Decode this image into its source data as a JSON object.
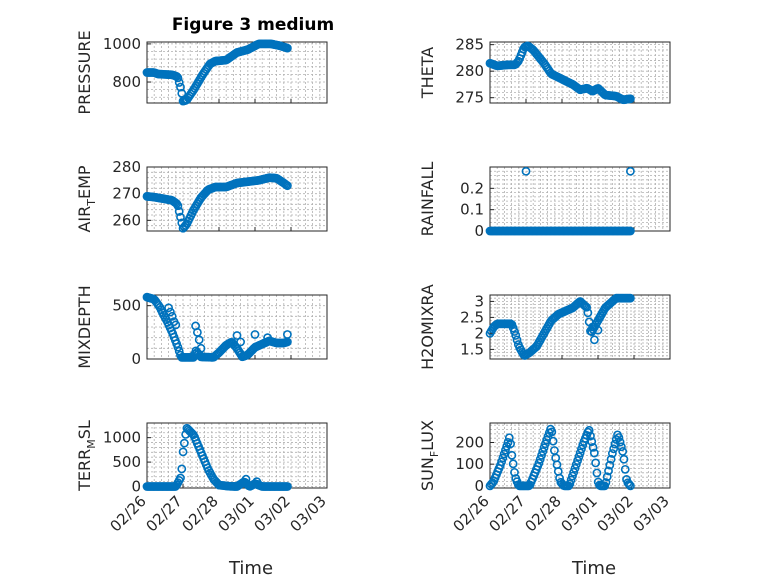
{
  "title": "Figure 3 medium",
  "colors": {
    "marker": "#0072BD",
    "axis": "#262626",
    "grid": "#b0b0b0"
  },
  "chart_data": [
    {
      "type": "scatter",
      "ylabel": "PRESSURE",
      "ylabel_main": "PRESSURE",
      "ylabel_sub": "",
      "ylabel_tail": "",
      "ylim": [
        690,
        1010
      ],
      "yticks": [
        800,
        1000
      ],
      "anchors": [
        [
          0,
          850
        ],
        [
          0.2,
          850
        ],
        [
          0.3,
          842
        ],
        [
          0.7,
          838
        ],
        [
          0.85,
          828
        ],
        [
          0.95,
          760
        ],
        [
          1.0,
          700
        ],
        [
          1.1,
          705
        ],
        [
          1.3,
          760
        ],
        [
          1.55,
          840
        ],
        [
          1.75,
          895
        ],
        [
          1.9,
          910
        ],
        [
          2.2,
          915
        ],
        [
          2.5,
          955
        ],
        [
          2.8,
          970
        ],
        [
          3.1,
          1000
        ],
        [
          3.45,
          1000
        ],
        [
          3.7,
          990
        ],
        [
          3.9,
          978
        ]
      ]
    },
    {
      "type": "scatter",
      "ylabel": "THETA",
      "ylabel_main": "THETA",
      "ylabel_sub": "",
      "ylabel_tail": "",
      "ylim": [
        274,
        285.5
      ],
      "yticks": [
        275,
        280,
        285
      ],
      "anchors": [
        [
          0,
          281.5
        ],
        [
          0.2,
          281
        ],
        [
          0.5,
          281.2
        ],
        [
          0.7,
          281.2
        ],
        [
          0.8,
          282
        ],
        [
          0.95,
          284.5
        ],
        [
          1.05,
          284.8
        ],
        [
          1.2,
          284
        ],
        [
          1.5,
          281.5
        ],
        [
          1.7,
          279.5
        ],
        [
          2.0,
          278.5
        ],
        [
          2.3,
          277.5
        ],
        [
          2.5,
          276.5
        ],
        [
          2.7,
          276.8
        ],
        [
          2.85,
          276.2
        ],
        [
          3.0,
          276.8
        ],
        [
          3.2,
          275.5
        ],
        [
          3.5,
          275.3
        ],
        [
          3.7,
          274.6
        ],
        [
          3.9,
          274.8
        ]
      ]
    },
    {
      "type": "scatter",
      "ylabel": "AIR_TEMP",
      "ylabel_main": "AIR",
      "ylabel_sub": "T",
      "ylabel_tail": "EMP",
      "ylim": [
        256,
        280
      ],
      "yticks": [
        260,
        270,
        280
      ],
      "anchors": [
        [
          0,
          269
        ],
        [
          0.2,
          268.7
        ],
        [
          0.5,
          268
        ],
        [
          0.7,
          267.5
        ],
        [
          0.85,
          266
        ],
        [
          0.95,
          260
        ],
        [
          1.0,
          257
        ],
        [
          1.1,
          258.5
        ],
        [
          1.3,
          264
        ],
        [
          1.5,
          268.5
        ],
        [
          1.7,
          271.5
        ],
        [
          1.9,
          272.5
        ],
        [
          2.2,
          272.5
        ],
        [
          2.5,
          274
        ],
        [
          2.8,
          274.5
        ],
        [
          3.1,
          275
        ],
        [
          3.4,
          276
        ],
        [
          3.6,
          275.8
        ],
        [
          3.8,
          274
        ],
        [
          3.9,
          273
        ]
      ]
    },
    {
      "type": "scatter",
      "ylabel": "RAINFALL",
      "ylabel_main": "RAINFALL",
      "ylabel_sub": "",
      "ylabel_tail": "",
      "ylim": [
        0,
        0.3
      ],
      "yticks": [
        0,
        0.1,
        0.2
      ],
      "anchors": [
        [
          0,
          0
        ],
        [
          3.9,
          0
        ]
      ],
      "extra": [
        [
          1.0,
          0.28
        ],
        [
          3.9,
          0.28
        ]
      ]
    },
    {
      "type": "scatter",
      "ylabel": "MIXDEPTH",
      "ylabel_main": "MIXDEPTH",
      "ylabel_sub": "",
      "ylabel_tail": "",
      "ylim": [
        0,
        600
      ],
      "yticks": [
        0,
        500
      ],
      "anchors": [
        [
          0,
          580
        ],
        [
          0.2,
          560
        ],
        [
          0.35,
          490
        ],
        [
          0.45,
          420
        ],
        [
          0.55,
          360
        ],
        [
          0.7,
          250
        ],
        [
          0.85,
          120
        ],
        [
          0.95,
          15
        ],
        [
          1.3,
          15
        ],
        [
          1.35,
          80
        ],
        [
          1.5,
          20
        ],
        [
          1.85,
          15
        ],
        [
          2.0,
          60
        ],
        [
          2.2,
          130
        ],
        [
          2.35,
          160
        ],
        [
          2.5,
          100
        ],
        [
          2.65,
          20
        ],
        [
          2.8,
          40
        ],
        [
          3.0,
          110
        ],
        [
          3.2,
          140
        ],
        [
          3.4,
          170
        ],
        [
          3.6,
          150
        ],
        [
          3.8,
          150
        ],
        [
          3.9,
          160
        ]
      ],
      "extra": [
        [
          0.6,
          480
        ],
        [
          0.65,
          440
        ],
        [
          0.7,
          400
        ],
        [
          0.75,
          350
        ],
        [
          0.8,
          320
        ],
        [
          1.35,
          310
        ],
        [
          1.4,
          250
        ],
        [
          1.45,
          180
        ],
        [
          1.5,
          100
        ],
        [
          2.5,
          220
        ],
        [
          2.6,
          160
        ],
        [
          3.0,
          230
        ],
        [
          3.35,
          200
        ],
        [
          3.9,
          230
        ]
      ]
    },
    {
      "type": "scatter",
      "ylabel": "H2OMIXRA",
      "ylabel_main": "H2OMIXRA",
      "ylabel_sub": "",
      "ylabel_tail": "",
      "ylim": [
        1.2,
        3.2
      ],
      "yticks": [
        1.5,
        2,
        2.5,
        3
      ],
      "anchors": [
        [
          0,
          2.0
        ],
        [
          0.1,
          2.2
        ],
        [
          0.2,
          2.3
        ],
        [
          0.6,
          2.3
        ],
        [
          0.7,
          2.0
        ],
        [
          0.8,
          1.6
        ],
        [
          0.95,
          1.3
        ],
        [
          1.1,
          1.4
        ],
        [
          1.3,
          1.6
        ],
        [
          1.5,
          2.0
        ],
        [
          1.7,
          2.4
        ],
        [
          1.9,
          2.6
        ],
        [
          2.1,
          2.7
        ],
        [
          2.3,
          2.8
        ],
        [
          2.5,
          3.0
        ],
        [
          2.7,
          2.8
        ],
        [
          2.8,
          2.0
        ],
        [
          3.0,
          2.4
        ],
        [
          3.2,
          2.8
        ],
        [
          3.3,
          2.9
        ],
        [
          3.5,
          3.1
        ],
        [
          3.9,
          3.1
        ]
      ],
      "extra": [
        [
          2.9,
          1.8
        ],
        [
          3.0,
          2.1
        ],
        [
          2.85,
          2.2
        ],
        [
          3.05,
          2.5
        ]
      ]
    },
    {
      "type": "scatter",
      "ylabel": "TERR_MSL",
      "ylabel_main": "TERR",
      "ylabel_sub": "M",
      "ylabel_tail": "SL",
      "ylim": [
        -30,
        1300
      ],
      "yticks": [
        0,
        500,
        1000
      ],
      "anchors": [
        [
          0,
          0
        ],
        [
          0.8,
          0
        ],
        [
          0.95,
          200
        ],
        [
          1.0,
          700
        ],
        [
          1.1,
          1200
        ],
        [
          1.3,
          1050
        ],
        [
          1.5,
          700
        ],
        [
          1.7,
          350
        ],
        [
          1.85,
          150
        ],
        [
          2.0,
          30
        ],
        [
          2.3,
          5
        ],
        [
          2.5,
          0
        ],
        [
          2.7,
          100
        ],
        [
          2.85,
          0
        ],
        [
          3.0,
          60
        ],
        [
          3.2,
          0
        ],
        [
          3.9,
          0
        ]
      ],
      "extra": [
        [
          2.75,
          150
        ],
        [
          3.05,
          100
        ],
        [
          3.1,
          40
        ]
      ]
    },
    {
      "type": "scatter",
      "ylabel": "SUN_FLUX",
      "ylabel_main": "SUN",
      "ylabel_sub": "F",
      "ylabel_tail": "LUX",
      "ylim": [
        -10,
        290
      ],
      "yticks": [
        0,
        100,
        200
      ],
      "anchors": [
        [
          0,
          0
        ],
        [
          0.1,
          20
        ],
        [
          0.3,
          100
        ],
        [
          0.5,
          200
        ],
        [
          0.55,
          230
        ],
        [
          0.6,
          150
        ],
        [
          0.7,
          40
        ],
        [
          0.8,
          0
        ],
        [
          1.1,
          0
        ],
        [
          1.35,
          100
        ],
        [
          1.55,
          200
        ],
        [
          1.7,
          270
        ],
        [
          1.8,
          150
        ],
        [
          1.95,
          20
        ],
        [
          2.05,
          0
        ],
        [
          2.2,
          0
        ],
        [
          2.4,
          100
        ],
        [
          2.6,
          200
        ],
        [
          2.75,
          260
        ],
        [
          2.9,
          150
        ],
        [
          3.0,
          20
        ],
        [
          3.05,
          0
        ],
        [
          3.2,
          0
        ],
        [
          3.4,
          150
        ],
        [
          3.55,
          240
        ],
        [
          3.7,
          150
        ],
        [
          3.8,
          20
        ],
        [
          3.9,
          0
        ]
      ]
    }
  ],
  "x_tick_labels": [
    "02/26",
    "02/27",
    "02/28",
    "03/01",
    "03/02",
    "03/03"
  ],
  "xlabel": "Time",
  "x_range_days": [
    0,
    5
  ]
}
